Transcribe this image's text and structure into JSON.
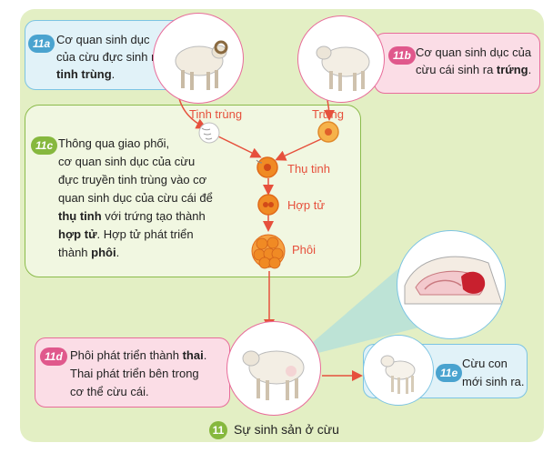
{
  "figure": {
    "number": "11",
    "caption": "Sự sinh sản ở cừu"
  },
  "box_a": {
    "badge": "11a",
    "line1": "Cơ quan sinh dục",
    "line2": "của cừu đực sinh ra",
    "bold": "tinh trùng",
    "tail": "."
  },
  "box_b": {
    "badge": "11b",
    "line1": "Cơ quan sinh dục của",
    "line2_pre": "cừu cái sinh ra ",
    "bold": "trứng",
    "tail": "."
  },
  "box_c": {
    "badge": "11c",
    "line1": "Thông qua giao phối,",
    "line2": "cơ quan sinh dục của cừu",
    "line3": "đực truyền tinh trùng vào cơ",
    "line4": "quan sinh dục của cừu cái để",
    "bold1": "thụ tinh",
    "line5_post": " với trứng tạo thành",
    "bold2": "hợp tử",
    "line6_post": ". Hợp tử phát triển",
    "line7_pre": "thành ",
    "bold3": "phôi",
    "line7_post": "."
  },
  "box_d": {
    "badge": "11d",
    "line1_pre": "Phôi phát triển thành ",
    "bold": "thai",
    "line1_post": ".",
    "line2": "Thai phát triển bên trong",
    "line3": "cơ thể cừu cái."
  },
  "box_e": {
    "badge": "11e",
    "line1": "Cừu con",
    "line2": "mới sinh ra."
  },
  "labels": {
    "sperm": "Tinh trùng",
    "egg": "Trứng",
    "fertilization": "Thụ tinh",
    "zygote": "Hợp tử",
    "embryo": "Phôi"
  },
  "colors": {
    "panel": "#e3efc4",
    "pink": "#e86c9a",
    "blue": "#7cc4e3",
    "green": "#8bbb4b",
    "label_red": "#e6503c",
    "cell_orange": "#f08a24"
  }
}
